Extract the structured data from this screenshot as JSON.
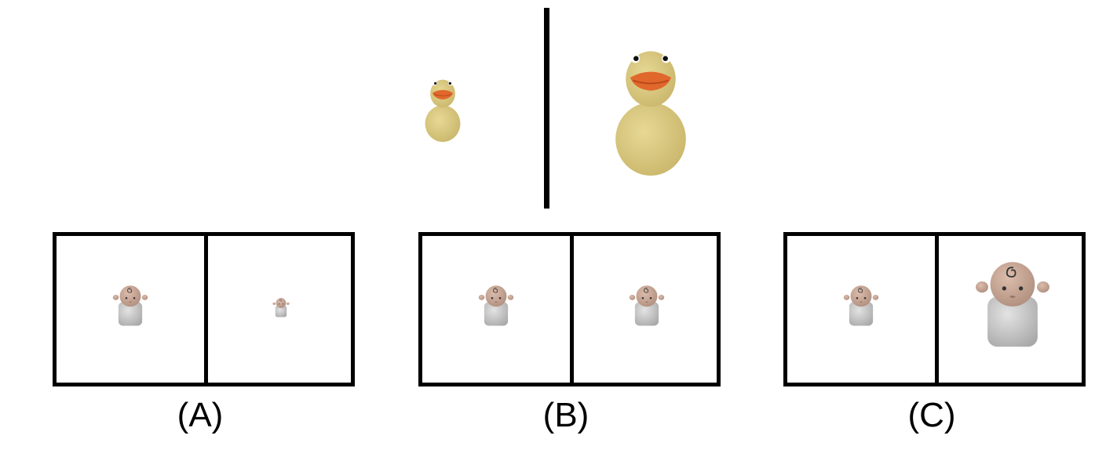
{
  "reference": {
    "left_item": "small-duck",
    "right_item": "large-duck"
  },
  "options": [
    {
      "label": "(A)",
      "left_baby": "normal",
      "right_baby": "smaller"
    },
    {
      "label": "(B)",
      "left_baby": "normal",
      "right_baby": "same"
    },
    {
      "label": "(C)",
      "left_baby": "normal",
      "right_baby": "larger"
    }
  ],
  "colors": {
    "duck_body": "#d9c87e",
    "duck_beak": "#e0682c",
    "baby_skin": "#c9a897",
    "baby_cloth": "#c9c9c9",
    "frame": "#000000"
  }
}
